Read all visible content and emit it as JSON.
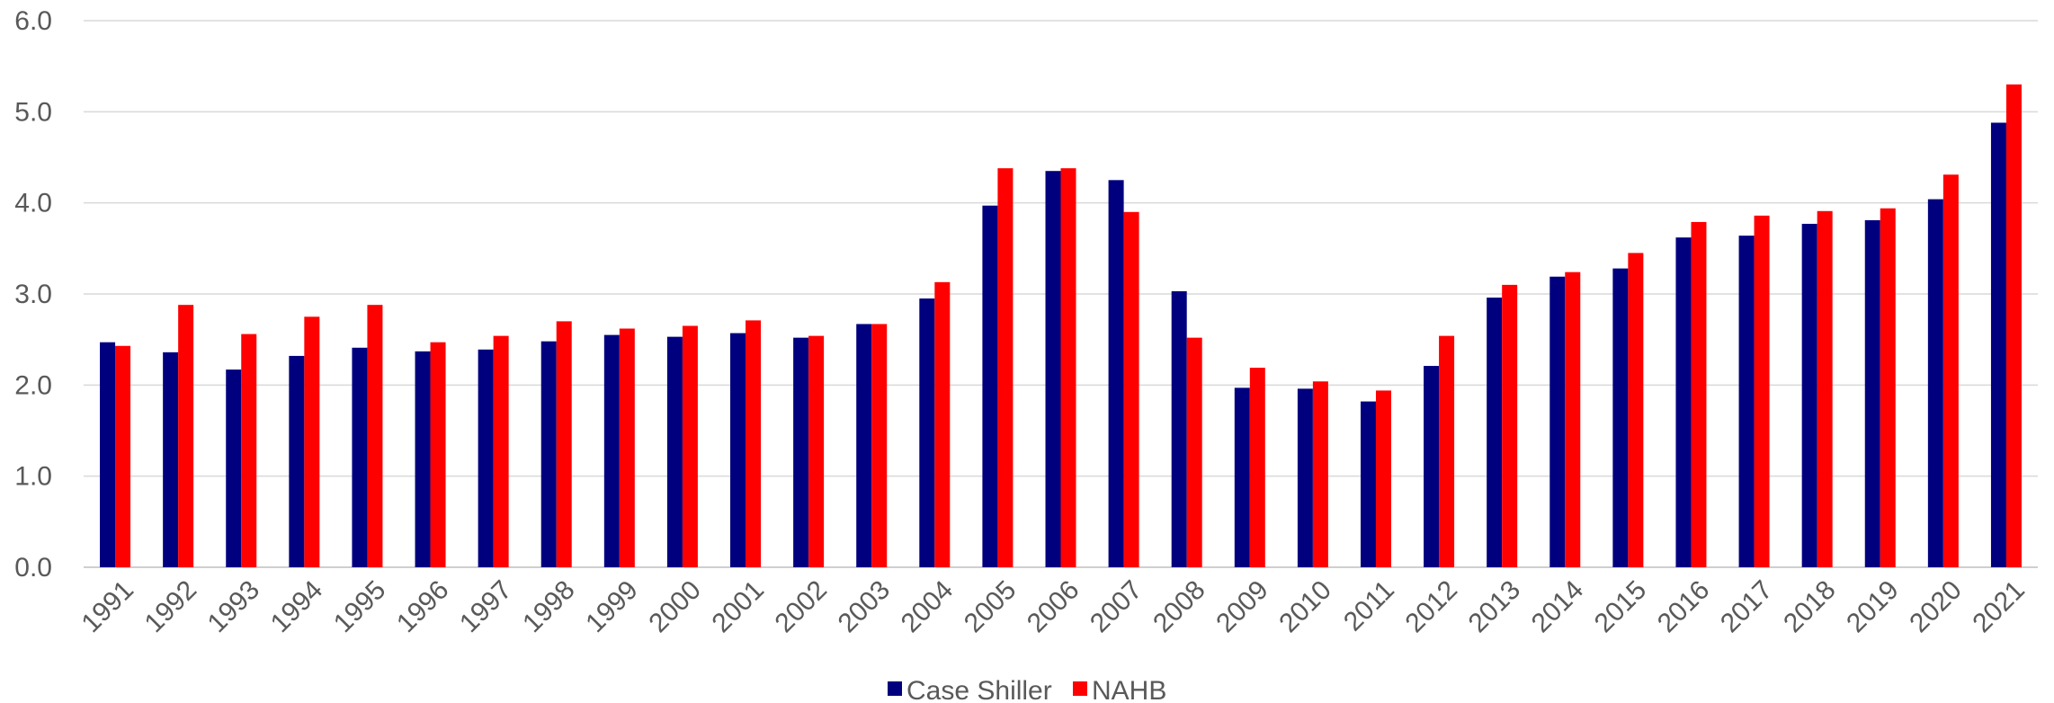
{
  "chart_data": {
    "type": "bar",
    "categories": [
      "1991",
      "1992",
      "1993",
      "1994",
      "1995",
      "1996",
      "1997",
      "1998",
      "1999",
      "2000",
      "2001",
      "2002",
      "2003",
      "2004",
      "2005",
      "2006",
      "2007",
      "2008",
      "2009",
      "2010",
      "2011",
      "2012",
      "2013",
      "2014",
      "2015",
      "2016",
      "2017",
      "2018",
      "2019",
      "2020",
      "2021"
    ],
    "series": [
      {
        "name": "Case Shiller",
        "color": "#00007F",
        "values": [
          2.47,
          2.36,
          2.17,
          2.32,
          2.41,
          2.37,
          2.39,
          2.48,
          2.55,
          2.53,
          2.57,
          2.52,
          2.67,
          2.95,
          3.97,
          4.35,
          4.25,
          3.03,
          1.97,
          1.96,
          1.82,
          2.21,
          2.96,
          3.19,
          3.28,
          3.62,
          3.64,
          3.77,
          3.81,
          4.04,
          4.88
        ]
      },
      {
        "name": "NAHB",
        "color": "#FF0000",
        "values": [
          2.43,
          2.88,
          2.56,
          2.75,
          2.88,
          2.47,
          2.54,
          2.7,
          2.62,
          2.65,
          2.71,
          2.54,
          2.67,
          3.13,
          4.38,
          4.38,
          3.9,
          2.52,
          2.19,
          2.04,
          1.94,
          2.54,
          3.1,
          3.24,
          3.45,
          3.79,
          3.86,
          3.91,
          3.94,
          4.31,
          5.3
        ]
      }
    ],
    "yticks": [
      "0.0",
      "1.0",
      "2.0",
      "3.0",
      "4.0",
      "5.0",
      "6.0"
    ],
    "ylim": [
      0,
      6
    ],
    "grid": true,
    "legend_position": "bottom",
    "title": "",
    "xlabel": "",
    "ylabel": ""
  }
}
